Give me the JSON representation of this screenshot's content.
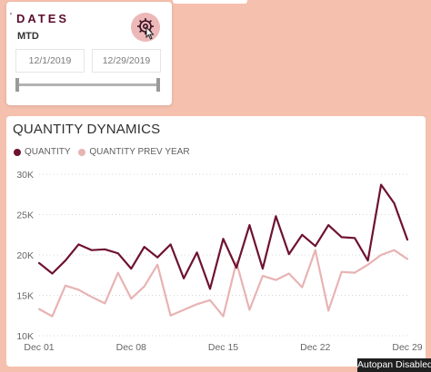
{
  "slicer": {
    "tick": "'",
    "title": "DATES",
    "mode": "MTD",
    "start_date": "12/1/2019",
    "end_date": "12/29/2019",
    "gear_icon": "gear-icon"
  },
  "chart_data": {
    "type": "line",
    "title": "QUANTITY DYNAMICS",
    "x_start": "2019-12-01",
    "x": [
      1,
      2,
      3,
      4,
      5,
      6,
      7,
      8,
      9,
      10,
      11,
      12,
      13,
      14,
      15,
      16,
      17,
      18,
      19,
      20,
      21,
      22,
      23,
      24,
      25,
      26,
      27,
      28,
      29
    ],
    "series": [
      {
        "name": "QUANTITY",
        "color": "#6e1230",
        "values": [
          19000,
          17700,
          19300,
          21300,
          20600,
          20700,
          20200,
          18300,
          21000,
          19700,
          21300,
          17100,
          20300,
          15800,
          22000,
          18400,
          23700,
          18300,
          24800,
          20100,
          22500,
          21100,
          23700,
          22200,
          22100,
          19300,
          28700,
          26400,
          21900
        ]
      },
      {
        "name": "QUANTITY PREV YEAR",
        "color": "#e8b3b3",
        "values": [
          13300,
          12400,
          16200,
          15700,
          14800,
          14000,
          17800,
          14600,
          16100,
          18800,
          12500,
          13200,
          13900,
          14400,
          12400,
          19100,
          13200,
          17400,
          16900,
          17700,
          16000,
          20600,
          13100,
          17900,
          17800,
          18800,
          20000,
          20600,
          19500
        ]
      }
    ],
    "y_ticks": [
      "10K",
      "15K",
      "20K",
      "25K",
      "30K"
    ],
    "y_tick_values": [
      10000,
      15000,
      20000,
      25000,
      30000
    ],
    "x_ticks": [
      "Dec 01",
      "Dec 08",
      "Dec 15",
      "Dec 22",
      "Dec 29"
    ],
    "x_tick_values": [
      1,
      8,
      15,
      22,
      29
    ],
    "ylim": [
      10000,
      30000
    ],
    "grid": "horizontal dotted",
    "legend_position": "top-left"
  },
  "status": {
    "autopan": "Autopan Disabled"
  }
}
